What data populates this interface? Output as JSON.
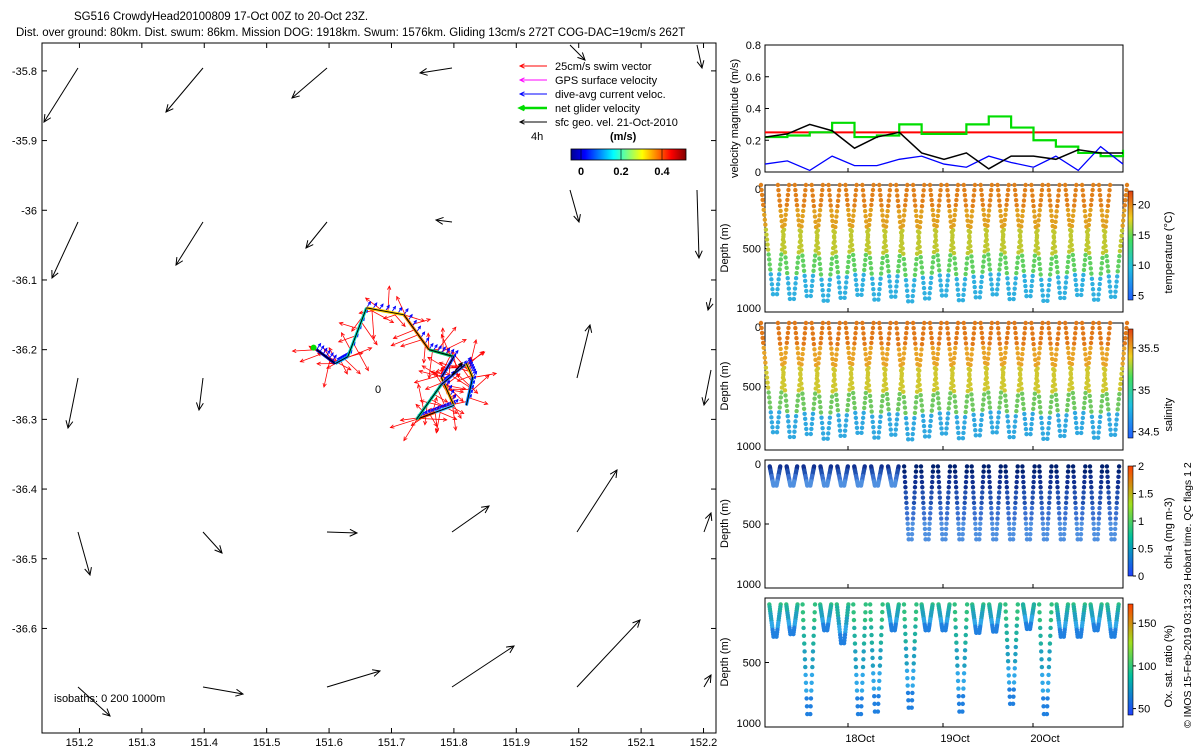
{
  "header": {
    "line1": "SG516 CrowdyHead20100809 17-Oct 00Z to 20-Oct 23Z.",
    "line2": "Dist. over ground: 80km. Dist. swum: 86km. Mission DOG: 1918km. Swum: 1576km. Gliding 13cm/s 272T COG-DAC=19cm/s 262T"
  },
  "map": {
    "legend": [
      {
        "label": "25cm/s swim vector",
        "color": "#ff0000"
      },
      {
        "label": "GPS surface velocity",
        "color": "#ff00ff"
      },
      {
        "label": "dive-avg current veloc.",
        "color": "#0000ff"
      },
      {
        "label": "net glider velocity",
        "color": "#00dd00"
      },
      {
        "label": "sfc geo. vel. 21-Oct-2010",
        "color": "#000000"
      }
    ],
    "interval_label": "4h",
    "colorbar_label": "(m/s)",
    "colorbar_ticks": [
      "0",
      "0.2",
      "0.4"
    ],
    "isobaths_label": "isobaths: 0   200  1000m",
    "start_marker": "0",
    "lat_ticks": [
      "-35.8",
      "-35.9",
      "-36",
      "-36.1",
      "-36.2",
      "-36.3",
      "-36.4",
      "-36.5",
      "-36.6"
    ],
    "lon_ticks": [
      "151.2",
      "151.3",
      "151.4",
      "151.5",
      "151.6",
      "151.7",
      "151.8",
      "151.9",
      "152",
      "152.1",
      "152.2"
    ]
  },
  "panels": {
    "velocity": {
      "ylabel": "velocity magnitude (m/s)",
      "yticks": [
        "0",
        "0.2",
        "0.4",
        "0.6",
        "0.8"
      ],
      "colors": {
        "swim": "#ff0000",
        "net": "#00dd00",
        "current": "#0000ff",
        "combined": "#000000"
      }
    },
    "temperature": {
      "ylabel": "Depth (m)",
      "cbar_label": "temperature (°C)",
      "cbar_ticks": [
        "5",
        "10",
        "15",
        "20"
      ],
      "yticks": [
        "0",
        "500",
        "1000"
      ]
    },
    "salinity": {
      "ylabel": "Depth (m)",
      "cbar_label": "salinity",
      "cbar_ticks": [
        "34.5",
        "35",
        "35.5"
      ],
      "yticks": [
        "0",
        "500",
        "1000"
      ]
    },
    "chla": {
      "ylabel": "Depth (m)",
      "cbar_label": "chl-a (mg m-3)",
      "cbar_ticks": [
        "0",
        "0.5",
        "1",
        "1.5",
        "2"
      ],
      "yticks": [
        "0",
        "500",
        "1000"
      ]
    },
    "oxygen": {
      "ylabel": "Depth (m)",
      "cbar_label": "Ox. sat. ratio (%)",
      "cbar_ticks": [
        "50",
        "100",
        "150"
      ],
      "yticks": [
        "500",
        "1000"
      ]
    },
    "time_ticks": [
      "18Oct",
      "19Oct",
      "20Oct"
    ]
  },
  "footer": "© IMOS 15-Feb-2019 03:13:23 Hobart time. QC flags 1  2",
  "chart_data": {
    "type": "scatter",
    "title": "SG516 CrowdyHead20100809 17-Oct 00Z to 20-Oct 23Z.",
    "map_xlim": [
      151.14,
      152.22
    ],
    "map_ylim": [
      -36.75,
      -35.76
    ],
    "glider_track": [
      [
        151.58,
        -36.2
      ],
      [
        151.61,
        -36.22
      ],
      [
        151.63,
        -36.21
      ],
      [
        151.66,
        -36.14
      ],
      [
        151.72,
        -36.15
      ],
      [
        151.76,
        -36.2
      ],
      [
        151.8,
        -36.21
      ],
      [
        151.78,
        -36.24
      ],
      [
        151.8,
        -36.28
      ],
      [
        151.77,
        -36.29
      ],
      [
        151.74,
        -36.3
      ],
      [
        151.78,
        -36.25
      ],
      [
        151.82,
        -36.22
      ],
      [
        151.83,
        -36.24
      ],
      [
        151.82,
        -36.28
      ]
    ],
    "velocity_series": [
      {
        "name": "25cm/s swim vector",
        "values": [
          0.25,
          0.25
        ]
      },
      {
        "name": "net glider velocity",
        "values": [
          0.22,
          0.23,
          0.25,
          0.31,
          0.22,
          0.23,
          0.3,
          0.24,
          0.24,
          0.3,
          0.35,
          0.28,
          0.2,
          0.16,
          0.12,
          0.1,
          0.14
        ]
      },
      {
        "name": "dive-avg current veloc.",
        "values": [
          0.05,
          0.07,
          0.01,
          0.1,
          0.04,
          0.04,
          0.08,
          0.1,
          0.05,
          0.03,
          0.1,
          0.06,
          0.03,
          0.1,
          0.01,
          0.16,
          0.05
        ]
      }
    ],
    "depth_range": [
      0,
      1000
    ],
    "temperature_range": [
      5,
      20
    ],
    "salinity_range": [
      34.4,
      35.8
    ],
    "chla_range": [
      0,
      2
    ],
    "oxygen_range": [
      20,
      170
    ],
    "time_range": [
      "17-Oct",
      "21-Oct"
    ]
  }
}
